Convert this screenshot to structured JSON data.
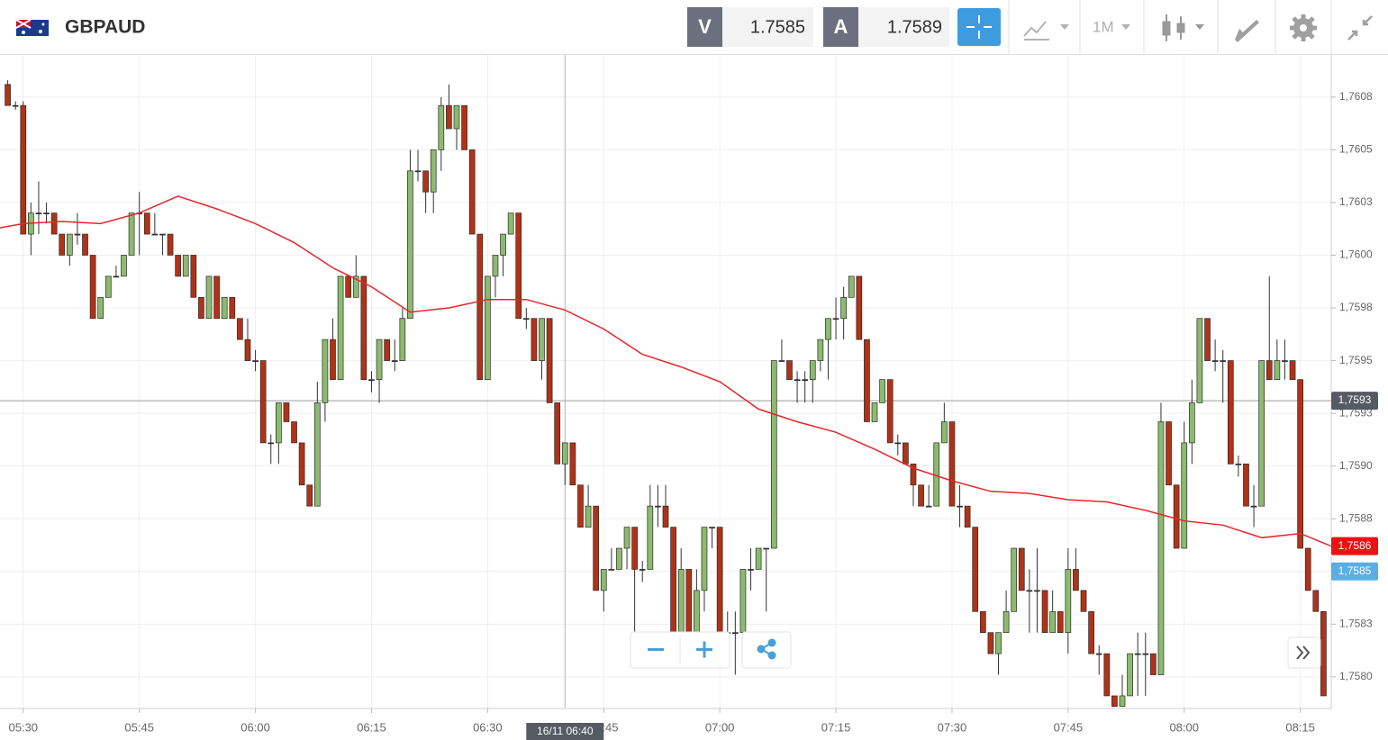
{
  "header": {
    "symbol": "GBPAUD",
    "bid_letter": "V",
    "bid": "1.7585",
    "ask_letter": "A",
    "ask": "1.7589",
    "timeframe": "1M"
  },
  "chart_data": {
    "type": "candlestick",
    "up_color": "#8cba6e",
    "down_color": "#b13216",
    "x": [
      "05:28",
      "05:29",
      "05:30",
      "05:31",
      "05:32",
      "05:33",
      "05:34",
      "05:35",
      "05:36",
      "05:37",
      "05:38",
      "05:39",
      "05:40",
      "05:41",
      "05:42",
      "05:43",
      "05:44",
      "05:45",
      "05:46",
      "05:47",
      "05:48",
      "05:49",
      "05:50",
      "05:51",
      "05:52",
      "05:53",
      "05:54",
      "05:55",
      "05:56",
      "05:57",
      "05:58",
      "05:59",
      "06:00",
      "06:01",
      "06:02",
      "06:03",
      "06:04",
      "06:05",
      "06:06",
      "06:07",
      "06:08",
      "06:09",
      "06:10",
      "06:11",
      "06:12",
      "06:13",
      "06:14",
      "06:15",
      "06:16",
      "06:17",
      "06:18",
      "06:19",
      "06:20",
      "06:21",
      "06:22",
      "06:23",
      "06:24",
      "06:25",
      "06:26",
      "06:27",
      "06:28",
      "06:29",
      "06:30",
      "06:31",
      "06:32",
      "06:33",
      "06:34",
      "06:35",
      "06:36",
      "06:37",
      "06:38",
      "06:39",
      "06:40",
      "06:41",
      "06:42",
      "06:43",
      "06:44",
      "06:45",
      "06:46",
      "06:47",
      "06:48",
      "06:49",
      "06:50",
      "06:51",
      "06:52",
      "06:53",
      "06:54",
      "06:55",
      "06:56",
      "06:57",
      "06:58",
      "06:59",
      "07:00",
      "07:01",
      "07:02",
      "07:03",
      "07:04",
      "07:05",
      "07:06",
      "07:07",
      "07:08",
      "07:09",
      "07:10",
      "07:11",
      "07:12",
      "07:13",
      "07:14",
      "07:15",
      "07:16",
      "07:17",
      "07:18",
      "07:19",
      "07:20",
      "07:21",
      "07:22",
      "07:23",
      "07:24",
      "07:25",
      "07:26",
      "07:27",
      "07:28",
      "07:29",
      "07:30",
      "07:31",
      "07:32",
      "07:33",
      "07:34",
      "07:35",
      "07:36",
      "07:37",
      "07:38",
      "07:39",
      "07:40",
      "07:41",
      "07:42",
      "07:43",
      "07:44",
      "07:45",
      "07:46",
      "07:47",
      "07:48",
      "07:49",
      "07:50",
      "07:51",
      "07:52",
      "07:53",
      "07:54",
      "07:55",
      "07:56",
      "07:57",
      "07:58",
      "07:59",
      "08:00",
      "08:01",
      "08:02",
      "08:03",
      "08:04",
      "08:05",
      "08:06",
      "08:07",
      "08:08",
      "08:09",
      "08:10",
      "08:11",
      "08:12",
      "08:13",
      "08:14",
      "08:15",
      "08:16",
      "08:17",
      "08:18"
    ],
    "ohlc": [
      [
        1.76081,
        1.76083,
        1.76071,
        1.76071
      ],
      [
        1.76071,
        1.76073,
        1.76069,
        1.76071
      ],
      [
        1.76071,
        1.76073,
        1.7601,
        1.7601
      ],
      [
        1.7601,
        1.76025,
        1.76,
        1.7602
      ],
      [
        1.7602,
        1.76035,
        1.7601,
        1.7602
      ],
      [
        1.7602,
        1.76025,
        1.76015,
        1.7602
      ],
      [
        1.7602,
        1.7602,
        1.7601,
        1.7601
      ],
      [
        1.7601,
        1.7601,
        1.76,
        1.76
      ],
      [
        1.76,
        1.7601,
        1.75995,
        1.7601
      ],
      [
        1.7601,
        1.7602,
        1.76005,
        1.7601
      ],
      [
        1.7601,
        1.7601,
        1.76,
        1.76
      ],
      [
        1.76,
        1.76,
        1.7597,
        1.7597
      ],
      [
        1.7597,
        1.7598,
        1.7597,
        1.7598
      ],
      [
        1.7598,
        1.7599,
        1.7598,
        1.7599
      ],
      [
        1.7599,
        1.75995,
        1.7599,
        1.7599
      ],
      [
        1.7599,
        1.76,
        1.7599,
        1.76
      ],
      [
        1.76,
        1.7602,
        1.76,
        1.7602
      ],
      [
        1.7602,
        1.7603,
        1.76,
        1.7602
      ],
      [
        1.7602,
        1.7602,
        1.7601,
        1.7601
      ],
      [
        1.7601,
        1.7602,
        1.7601,
        1.7601
      ],
      [
        1.7601,
        1.7601,
        1.76,
        1.7601
      ],
      [
        1.7601,
        1.7601,
        1.76,
        1.76
      ],
      [
        1.76,
        1.76,
        1.7599,
        1.7599
      ],
      [
        1.7599,
        1.76,
        1.7599,
        1.76
      ],
      [
        1.76,
        1.76,
        1.7598,
        1.7598
      ],
      [
        1.7598,
        1.7598,
        1.7597,
        1.7597
      ],
      [
        1.7597,
        1.7599,
        1.7597,
        1.7599
      ],
      [
        1.7599,
        1.7599,
        1.7597,
        1.7597
      ],
      [
        1.7597,
        1.7598,
        1.7597,
        1.7598
      ],
      [
        1.7598,
        1.7598,
        1.7597,
        1.7597
      ],
      [
        1.7597,
        1.7597,
        1.7596,
        1.7596
      ],
      [
        1.7596,
        1.7597,
        1.7595,
        1.7595
      ],
      [
        1.7595,
        1.75955,
        1.75945,
        1.7595
      ],
      [
        1.7595,
        1.7595,
        1.75911,
        1.75911
      ],
      [
        1.75911,
        1.75915,
        1.75901,
        1.75911
      ],
      [
        1.75911,
        1.7593,
        1.75901,
        1.7593
      ],
      [
        1.7593,
        1.7593,
        1.75921,
        1.75921
      ],
      [
        1.75921,
        1.75921,
        1.75911,
        1.75911
      ],
      [
        1.75911,
        1.75911,
        1.75891,
        1.75891
      ],
      [
        1.75891,
        1.75891,
        1.75881,
        1.75881
      ],
      [
        1.75881,
        1.7594,
        1.75881,
        1.7593
      ],
      [
        1.7593,
        1.7596,
        1.75921,
        1.7596
      ],
      [
        1.7596,
        1.7597,
        1.75941,
        1.75941
      ],
      [
        1.75941,
        1.7599,
        1.75941,
        1.7599
      ],
      [
        1.7599,
        1.7599,
        1.7598,
        1.7598
      ],
      [
        1.7598,
        1.76,
        1.7598,
        1.7599
      ],
      [
        1.7599,
        1.7599,
        1.75941,
        1.75941
      ],
      [
        1.75941,
        1.75945,
        1.75935,
        1.75941
      ],
      [
        1.75941,
        1.7596,
        1.7593,
        1.7596
      ],
      [
        1.7596,
        1.7596,
        1.7595,
        1.7595
      ],
      [
        1.7595,
        1.7596,
        1.75945,
        1.7595
      ],
      [
        1.7595,
        1.75975,
        1.7595,
        1.7597
      ],
      [
        1.7597,
        1.7605,
        1.7597,
        1.7604
      ],
      [
        1.7604,
        1.7605,
        1.76035,
        1.7604
      ],
      [
        1.7604,
        1.7604,
        1.7602,
        1.7603
      ],
      [
        1.7603,
        1.7605,
        1.7602,
        1.7605
      ],
      [
        1.7605,
        1.76075,
        1.7604,
        1.76071
      ],
      [
        1.76071,
        1.76081,
        1.7606,
        1.7606
      ],
      [
        1.7606,
        1.76071,
        1.7605,
        1.76071
      ],
      [
        1.76071,
        1.76071,
        1.7605,
        1.7605
      ],
      [
        1.7605,
        1.7605,
        1.7601,
        1.7601
      ],
      [
        1.7601,
        1.7601,
        1.75941,
        1.75941
      ],
      [
        1.75941,
        1.7599,
        1.75941,
        1.7599
      ],
      [
        1.7599,
        1.76,
        1.7598,
        1.76
      ],
      [
        1.76,
        1.7601,
        1.7599,
        1.7601
      ],
      [
        1.7601,
        1.7602,
        1.7601,
        1.7602
      ],
      [
        1.7602,
        1.7602,
        1.7597,
        1.7597
      ],
      [
        1.7597,
        1.75975,
        1.75965,
        1.7597
      ],
      [
        1.7597,
        1.7597,
        1.7595,
        1.7595
      ],
      [
        1.7595,
        1.7597,
        1.75941,
        1.7597
      ],
      [
        1.7597,
        1.7597,
        1.7593,
        1.7593
      ],
      [
        1.7593,
        1.7593,
        1.75901,
        1.75901
      ],
      [
        1.75901,
        1.75911,
        1.75891,
        1.75911
      ],
      [
        1.75911,
        1.75911,
        1.75891,
        1.75891
      ],
      [
        1.75891,
        1.75891,
        1.75871,
        1.75871
      ],
      [
        1.75871,
        1.75891,
        1.75871,
        1.75881
      ],
      [
        1.75881,
        1.75881,
        1.75841,
        1.75841
      ],
      [
        1.75841,
        1.75851,
        1.75831,
        1.75851
      ],
      [
        1.75851,
        1.75861,
        1.75851,
        1.75851
      ],
      [
        1.75851,
        1.75861,
        1.75851,
        1.75861
      ],
      [
        1.75861,
        1.75871,
        1.75851,
        1.75871
      ],
      [
        1.75871,
        1.75871,
        1.75821,
        1.75851
      ],
      [
        1.75851,
        1.75855,
        1.75845,
        1.75851
      ],
      [
        1.75851,
        1.75891,
        1.75851,
        1.75881
      ],
      [
        1.75881,
        1.75891,
        1.75871,
        1.75881
      ],
      [
        1.75881,
        1.75891,
        1.75871,
        1.75871
      ],
      [
        1.75871,
        1.75871,
        1.75821,
        1.75821
      ],
      [
        1.75821,
        1.75861,
        1.75821,
        1.75851
      ],
      [
        1.75851,
        1.75851,
        1.75821,
        1.75821
      ],
      [
        1.75821,
        1.75851,
        1.75821,
        1.75841
      ],
      [
        1.75841,
        1.75871,
        1.75831,
        1.75871
      ],
      [
        1.75871,
        1.75871,
        1.75861,
        1.75871
      ],
      [
        1.75871,
        1.75871,
        1.75821,
        1.75821
      ],
      [
        1.75821,
        1.75831,
        1.75821,
        1.75821
      ],
      [
        1.75821,
        1.75831,
        1.75801,
        1.75821
      ],
      [
        1.75821,
        1.75851,
        1.75821,
        1.75851
      ],
      [
        1.75851,
        1.75861,
        1.75841,
        1.75851
      ],
      [
        1.75851,
        1.75861,
        1.75851,
        1.75861
      ],
      [
        1.75861,
        1.75861,
        1.75831,
        1.75861
      ],
      [
        1.75861,
        1.7595,
        1.75861,
        1.7595
      ],
      [
        1.7595,
        1.7596,
        1.7595,
        1.7595
      ],
      [
        1.7595,
        1.7595,
        1.75941,
        1.75941
      ],
      [
        1.75941,
        1.75945,
        1.7593,
        1.75941
      ],
      [
        1.75941,
        1.75945,
        1.7593,
        1.75941
      ],
      [
        1.75941,
        1.7595,
        1.7593,
        1.7595
      ],
      [
        1.7595,
        1.7596,
        1.75945,
        1.7596
      ],
      [
        1.7596,
        1.7597,
        1.75941,
        1.7597
      ],
      [
        1.7597,
        1.7598,
        1.7596,
        1.7597
      ],
      [
        1.7597,
        1.75985,
        1.7596,
        1.7598
      ],
      [
        1.7598,
        1.7599,
        1.7598,
        1.7599
      ],
      [
        1.7599,
        1.7599,
        1.7596,
        1.7596
      ],
      [
        1.7596,
        1.7596,
        1.75921,
        1.75921
      ],
      [
        1.75921,
        1.7593,
        1.75921,
        1.7593
      ],
      [
        1.7593,
        1.75941,
        1.7593,
        1.75941
      ],
      [
        1.75941,
        1.75941,
        1.75911,
        1.75911
      ],
      [
        1.75911,
        1.75915,
        1.75905,
        1.75911
      ],
      [
        1.75911,
        1.75911,
        1.75901,
        1.75901
      ],
      [
        1.75901,
        1.75901,
        1.75881,
        1.75891
      ],
      [
        1.75891,
        1.75891,
        1.75881,
        1.75881
      ],
      [
        1.75881,
        1.75891,
        1.75881,
        1.75881
      ],
      [
        1.75881,
        1.75911,
        1.75881,
        1.75911
      ],
      [
        1.75911,
        1.7593,
        1.75911,
        1.75921
      ],
      [
        1.75921,
        1.75921,
        1.75881,
        1.75881
      ],
      [
        1.75881,
        1.75891,
        1.75871,
        1.75881
      ],
      [
        1.75881,
        1.75881,
        1.75871,
        1.75871
      ],
      [
        1.75871,
        1.75871,
        1.75831,
        1.75831
      ],
      [
        1.75831,
        1.75831,
        1.75821,
        1.75821
      ],
      [
        1.75821,
        1.75821,
        1.75811,
        1.75811
      ],
      [
        1.75811,
        1.75821,
        1.75801,
        1.75821
      ],
      [
        1.75821,
        1.75841,
        1.75821,
        1.75831
      ],
      [
        1.75831,
        1.75861,
        1.75831,
        1.75861
      ],
      [
        1.75861,
        1.75861,
        1.75841,
        1.75841
      ],
      [
        1.75841,
        1.75851,
        1.75821,
        1.75841
      ],
      [
        1.75841,
        1.75861,
        1.75821,
        1.75841
      ],
      [
        1.75841,
        1.75841,
        1.75821,
        1.75821
      ],
      [
        1.75821,
        1.75841,
        1.75821,
        1.75831
      ],
      [
        1.75831,
        1.75831,
        1.75821,
        1.75821
      ],
      [
        1.75821,
        1.75861,
        1.75811,
        1.75851
      ],
      [
        1.75851,
        1.75861,
        1.75841,
        1.75841
      ],
      [
        1.75841,
        1.75841,
        1.75831,
        1.75831
      ],
      [
        1.75831,
        1.75831,
        1.75811,
        1.75811
      ],
      [
        1.75811,
        1.75815,
        1.75801,
        1.75811
      ],
      [
        1.75811,
        1.75811,
        1.75791,
        1.75791
      ],
      [
        1.75791,
        1.75791,
        1.75786,
        1.75786
      ],
      [
        1.75786,
        1.75801,
        1.75786,
        1.75791
      ],
      [
        1.75791,
        1.75811,
        1.75791,
        1.75811
      ],
      [
        1.75811,
        1.75821,
        1.75791,
        1.75811
      ],
      [
        1.75811,
        1.75821,
        1.75791,
        1.75811
      ],
      [
        1.75811,
        1.75811,
        1.75801,
        1.75801
      ],
      [
        1.75801,
        1.7593,
        1.75801,
        1.75921
      ],
      [
        1.75921,
        1.75921,
        1.75891,
        1.75891
      ],
      [
        1.75891,
        1.75891,
        1.75861,
        1.75861
      ],
      [
        1.75861,
        1.75921,
        1.75861,
        1.75911
      ],
      [
        1.75911,
        1.75941,
        1.75901,
        1.7593
      ],
      [
        1.7593,
        1.7597,
        1.7593,
        1.7597
      ],
      [
        1.7597,
        1.7597,
        1.7595,
        1.7595
      ],
      [
        1.7595,
        1.7596,
        1.75945,
        1.7595
      ],
      [
        1.7595,
        1.75955,
        1.7593,
        1.7595
      ],
      [
        1.7595,
        1.7595,
        1.75901,
        1.75901
      ],
      [
        1.75901,
        1.75905,
        1.75895,
        1.75901
      ],
      [
        1.75901,
        1.75901,
        1.75881,
        1.75881
      ],
      [
        1.75881,
        1.75891,
        1.75871,
        1.75881
      ],
      [
        1.75881,
        1.7595,
        1.75881,
        1.7595
      ],
      [
        1.7595,
        1.7599,
        1.75941,
        1.75941
      ],
      [
        1.75941,
        1.7596,
        1.75941,
        1.7595
      ],
      [
        1.7595,
        1.7596,
        1.75941,
        1.7595
      ],
      [
        1.7595,
        1.7595,
        1.75941,
        1.75941
      ],
      [
        1.75941,
        1.75941,
        1.75861,
        1.75861
      ],
      [
        1.75861,
        1.75861,
        1.75841,
        1.75841
      ],
      [
        1.75841,
        1.75841,
        1.75831,
        1.75831
      ],
      [
        1.75831,
        1.75831,
        1.75791,
        1.75791
      ]
    ],
    "ma": {
      "color": "#e8262a",
      "x": [
        "05:27",
        "05:30",
        "05:35",
        "05:40",
        "05:45",
        "05:50",
        "05:55",
        "06:00",
        "06:05",
        "06:10",
        "06:15",
        "06:20",
        "06:25",
        "06:30",
        "06:35",
        "06:40",
        "06:45",
        "06:50",
        "06:55",
        "07:00",
        "07:05",
        "07:10",
        "07:15",
        "07:20",
        "07:25",
        "07:30",
        "07:35",
        "07:40",
        "07:45",
        "07:50",
        "07:55",
        "08:00",
        "08:05",
        "08:10",
        "08:15",
        "08:19"
      ],
      "values": [
        1.76013,
        1.76015,
        1.76016,
        1.76015,
        1.7602,
        1.76028,
        1.76022,
        1.76015,
        1.76006,
        1.75994,
        1.75985,
        1.75973,
        1.75975,
        1.75979,
        1.75979,
        1.75974,
        1.75965,
        1.75953,
        1.75947,
        1.7594,
        1.75927,
        1.75921,
        1.75916,
        1.75908,
        1.75899,
        1.75893,
        1.75888,
        1.75887,
        1.75884,
        1.75883,
        1.75879,
        1.75874,
        1.75872,
        1.75866,
        1.75868,
        1.75862
      ]
    },
    "xlim": [
      "05:27",
      "08:19"
    ],
    "xticks": [
      "05:30",
      "05:45",
      "06:00",
      "06:15",
      "06:30",
      "06:45",
      "07:00",
      "07:15",
      "07:30",
      "07:45",
      "08:00",
      "08:15"
    ],
    "ylim": [
      1.75785,
      1.76095
    ],
    "yticks": [
      {
        "value": 1.76075,
        "label": "1,7608"
      },
      {
        "value": 1.7605,
        "label": "1,7605"
      },
      {
        "value": 1.76025,
        "label": "1,7603"
      },
      {
        "value": 1.76,
        "label": "1,7600"
      },
      {
        "value": 1.75975,
        "label": "1,7598"
      },
      {
        "value": 1.7595,
        "label": "1,7595"
      },
      {
        "value": 1.75925,
        "label": "1,7593"
      },
      {
        "value": 1.759,
        "label": "1,7590"
      },
      {
        "value": 1.75875,
        "label": "1,7588"
      },
      {
        "value": 1.7585,
        "label": "1,7585"
      },
      {
        "value": 1.75825,
        "label": "1,7583"
      },
      {
        "value": 1.758,
        "label": "1,7580"
      }
    ],
    "grid": true,
    "crosshair": {
      "price": {
        "value": 1.75931,
        "label": "1,7593"
      },
      "time": "16/11 06:40"
    },
    "ma_last": {
      "value": 1.75862,
      "label": "1,7586"
    },
    "bid_line": {
      "value": 1.7585,
      "label": "1,7585"
    }
  }
}
